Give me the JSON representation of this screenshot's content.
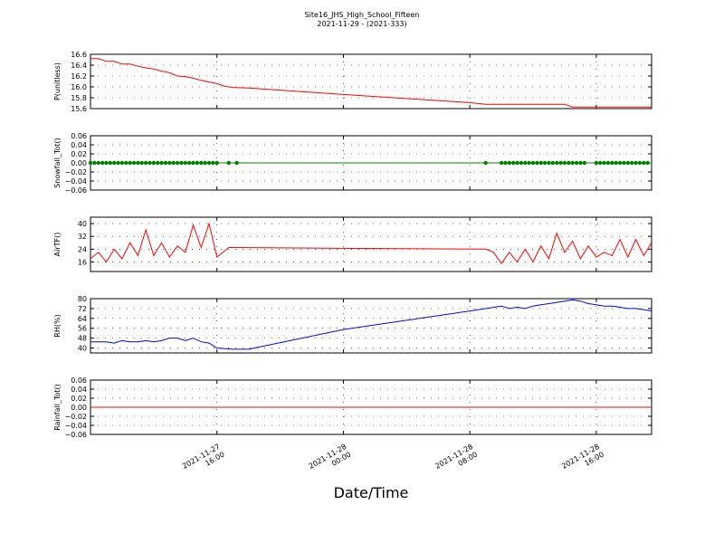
{
  "figure": {
    "title": "Site16_JHS_High_School_Fifteen",
    "subtitle": "2021-11-29 - (2021-333)",
    "xlabel": "Date/Time",
    "x_range": [
      "2021-11-27 08:00",
      "2021-11-28 19:30"
    ],
    "x_ticks": [
      {
        "value": "2021-11-27 16:00",
        "line1": "2021-11-27",
        "line2": "16:00"
      },
      {
        "value": "2021-11-28 00:00",
        "line1": "2021-11-28",
        "line2": "00:00"
      },
      {
        "value": "2021-11-28 08:00",
        "line1": "2021-11-28",
        "line2": "08:00"
      },
      {
        "value": "2021-11-28 16:00",
        "line1": "2021-11-28",
        "line2": "16:00"
      }
    ]
  },
  "chart_data": [
    {
      "type": "line",
      "ylabel": "P(unitless)",
      "ylim": [
        15.6,
        16.6
      ],
      "yticks": [
        "15.6",
        "15.8",
        "16.0",
        "16.2",
        "16.4",
        "16.6"
      ],
      "grid": true,
      "color": "#ff0000",
      "series": [
        {
          "x": [
            "2021-11-27 08:00",
            "2021-11-27 08:30",
            "2021-11-27 09:00",
            "2021-11-27 09:30",
            "2021-11-27 10:00",
            "2021-11-27 10:30",
            "2021-11-27 11:00",
            "2021-11-27 11:30",
            "2021-11-27 12:00",
            "2021-11-27 12:30",
            "2021-11-27 13:00",
            "2021-11-27 13:30",
            "2021-11-27 14:00",
            "2021-11-27 14:30",
            "2021-11-27 15:00",
            "2021-11-27 15:30",
            "2021-11-27 16:00",
            "2021-11-27 16:30",
            "2021-11-27 17:00",
            "2021-11-27 18:00",
            "2021-11-28 00:00",
            "2021-11-28 08:00",
            "2021-11-28 09:00",
            "2021-11-28 14:00",
            "2021-11-28 14:30",
            "2021-11-28 19:30"
          ],
          "values": [
            16.52,
            16.52,
            16.47,
            16.47,
            16.42,
            16.42,
            16.38,
            16.35,
            16.33,
            16.29,
            16.26,
            16.2,
            16.19,
            16.16,
            16.12,
            16.09,
            16.06,
            16.01,
            15.99,
            15.98,
            15.86,
            15.71,
            15.68,
            15.68,
            15.63,
            15.63
          ]
        }
      ]
    },
    {
      "type": "scatter",
      "ylabel": "Snowfall_Tot()",
      "ylim": [
        -0.06,
        0.06
      ],
      "yticks": [
        "−0.06",
        "−0.04",
        "−0.02",
        "0.00",
        "0.02",
        "0.04",
        "0.06"
      ],
      "grid": true,
      "color": "#008000",
      "line_from": "2021-11-27 08:00",
      "line_to": "2021-11-28 19:30",
      "series": [
        {
          "x": [
            "2021-11-27 08:00",
            "2021-11-27 08:15",
            "2021-11-27 08:30",
            "2021-11-27 08:45",
            "2021-11-27 09:00",
            "2021-11-27 09:15",
            "2021-11-27 09:30",
            "2021-11-27 09:45",
            "2021-11-27 10:00",
            "2021-11-27 10:15",
            "2021-11-27 10:30",
            "2021-11-27 10:45",
            "2021-11-27 11:00",
            "2021-11-27 11:15",
            "2021-11-27 11:30",
            "2021-11-27 11:45",
            "2021-11-27 12:00",
            "2021-11-27 12:15",
            "2021-11-27 12:30",
            "2021-11-27 12:45",
            "2021-11-27 13:00",
            "2021-11-27 13:15",
            "2021-11-27 13:30",
            "2021-11-27 13:45",
            "2021-11-27 14:00",
            "2021-11-27 14:15",
            "2021-11-27 14:30",
            "2021-11-27 14:45",
            "2021-11-27 15:00",
            "2021-11-27 15:15",
            "2021-11-27 15:30",
            "2021-11-27 15:45",
            "2021-11-27 16:00",
            "2021-11-27 16:45",
            "2021-11-27 17:15",
            "2021-11-28 09:00",
            "2021-11-28 10:00",
            "2021-11-28 10:15",
            "2021-11-28 10:30",
            "2021-11-28 10:45",
            "2021-11-28 11:00",
            "2021-11-28 11:15",
            "2021-11-28 11:30",
            "2021-11-28 11:45",
            "2021-11-28 12:00",
            "2021-11-28 12:15",
            "2021-11-28 12:30",
            "2021-11-28 12:45",
            "2021-11-28 13:00",
            "2021-11-28 13:15",
            "2021-11-28 13:30",
            "2021-11-28 13:45",
            "2021-11-28 14:00",
            "2021-11-28 14:15",
            "2021-11-28 14:30",
            "2021-11-28 14:45",
            "2021-11-28 15:00",
            "2021-11-28 15:15",
            "2021-11-28 16:00",
            "2021-11-28 16:15",
            "2021-11-28 16:30",
            "2021-11-28 16:45",
            "2021-11-28 17:00",
            "2021-11-28 17:15",
            "2021-11-28 17:30",
            "2021-11-28 17:45",
            "2021-11-28 18:00",
            "2021-11-28 18:15",
            "2021-11-28 18:30",
            "2021-11-28 18:45",
            "2021-11-28 19:00",
            "2021-11-28 19:15"
          ],
          "values": [
            0,
            0,
            0,
            0,
            0,
            0,
            0,
            0,
            0,
            0,
            0,
            0,
            0,
            0,
            0,
            0,
            0,
            0,
            0,
            0,
            0,
            0,
            0,
            0,
            0,
            0,
            0,
            0,
            0,
            0,
            0,
            0,
            0,
            0,
            0,
            0,
            0,
            0,
            0,
            0,
            0,
            0,
            0,
            0,
            0,
            0,
            0,
            0,
            0,
            0,
            0,
            0,
            0,
            0,
            0,
            0,
            0,
            0,
            0,
            0,
            0,
            0,
            0,
            0,
            0,
            0,
            0,
            0,
            0,
            0,
            0,
            0
          ]
        }
      ]
    },
    {
      "type": "line",
      "ylabel": "AirTF()",
      "ylim": [
        10,
        44
      ],
      "yticks": [
        "16",
        "24",
        "32",
        "40"
      ],
      "grid": true,
      "color": "#ff0000",
      "series": [
        {
          "x": [
            "2021-11-27 08:00",
            "2021-11-27 08:30",
            "2021-11-27 09:00",
            "2021-11-27 09:30",
            "2021-11-27 10:00",
            "2021-11-27 10:30",
            "2021-11-27 11:00",
            "2021-11-27 11:30",
            "2021-11-27 12:00",
            "2021-11-27 12:30",
            "2021-11-27 13:00",
            "2021-11-27 13:30",
            "2021-11-27 14:00",
            "2021-11-27 14:30",
            "2021-11-27 15:00",
            "2021-11-27 15:30",
            "2021-11-27 16:00",
            "2021-11-27 16:45",
            "2021-11-28 09:00",
            "2021-11-28 09:30",
            "2021-11-28 10:00",
            "2021-11-28 10:30",
            "2021-11-28 11:00",
            "2021-11-28 11:30",
            "2021-11-28 12:00",
            "2021-11-28 12:30",
            "2021-11-28 13:00",
            "2021-11-28 13:30",
            "2021-11-28 14:00",
            "2021-11-28 14:30",
            "2021-11-28 15:00",
            "2021-11-28 15:30",
            "2021-11-28 16:00",
            "2021-11-28 16:30",
            "2021-11-28 17:00",
            "2021-11-28 17:30",
            "2021-11-28 18:00",
            "2021-11-28 18:30",
            "2021-11-28 19:00",
            "2021-11-28 19:30"
          ],
          "values": [
            18,
            22,
            16,
            24,
            18,
            28,
            20,
            36,
            20,
            28,
            19,
            26,
            22,
            39,
            25,
            40,
            19,
            25,
            24,
            22,
            15,
            22,
            16,
            24,
            16,
            26,
            18,
            34,
            22,
            29,
            18,
            26,
            19,
            22,
            20,
            30,
            19,
            30,
            20,
            28
          ]
        }
      ]
    },
    {
      "type": "line",
      "ylabel": "RH(%)",
      "ylim": [
        36,
        80
      ],
      "yticks": [
        "40",
        "48",
        "56",
        "64",
        "72",
        "80"
      ],
      "grid": true,
      "color": "#0000ff",
      "series": [
        {
          "x": [
            "2021-11-27 08:00",
            "2021-11-27 08:30",
            "2021-11-27 09:00",
            "2021-11-27 09:30",
            "2021-11-27 10:00",
            "2021-11-27 10:30",
            "2021-11-27 11:00",
            "2021-11-27 11:30",
            "2021-11-27 12:00",
            "2021-11-27 12:30",
            "2021-11-27 13:00",
            "2021-11-27 13:30",
            "2021-11-27 14:00",
            "2021-11-27 14:30",
            "2021-11-27 15:00",
            "2021-11-27 15:30",
            "2021-11-27 16:00",
            "2021-11-27 17:00",
            "2021-11-27 18:00",
            "2021-11-28 00:00",
            "2021-11-28 08:00",
            "2021-11-28 10:00",
            "2021-11-28 10:30",
            "2021-11-28 11:00",
            "2021-11-28 11:30",
            "2021-11-28 12:00",
            "2021-11-28 12:30",
            "2021-11-28 13:00",
            "2021-11-28 13:30",
            "2021-11-28 14:00",
            "2021-11-28 14:30",
            "2021-11-28 15:00",
            "2021-11-28 15:30",
            "2021-11-28 16:00",
            "2021-11-28 16:30",
            "2021-11-28 17:00",
            "2021-11-28 17:30",
            "2021-11-28 18:00",
            "2021-11-28 18:30",
            "2021-11-28 19:00",
            "2021-11-28 19:30"
          ],
          "values": [
            45,
            45,
            45,
            44,
            46,
            45,
            45,
            46,
            45,
            46,
            48,
            48,
            46,
            48,
            45,
            44,
            40,
            39,
            39,
            55,
            70,
            74,
            72,
            73,
            72,
            74,
            75,
            76,
            77,
            78,
            79,
            78,
            76,
            75,
            74,
            74,
            73,
            72,
            72,
            71,
            70
          ]
        }
      ]
    },
    {
      "type": "line",
      "ylabel": "Rainfall_Tot()",
      "ylim": [
        -0.06,
        0.06
      ],
      "yticks": [
        "−0.06",
        "−0.04",
        "−0.02",
        "0.00",
        "0.02",
        "0.04",
        "0.06"
      ],
      "grid": true,
      "color": "#ff0000",
      "series": [
        {
          "x": [
            "2021-11-27 08:00",
            "2021-11-28 19:30"
          ],
          "values": [
            0,
            0
          ]
        }
      ]
    }
  ]
}
